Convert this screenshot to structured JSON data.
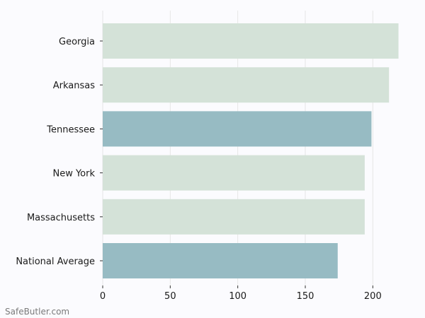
{
  "watermark": "SafeButler.com",
  "colors": {
    "background": "#fbfbfe",
    "bar_default": "#d4e2d8",
    "bar_highlight": "#97bbc3",
    "grid": "#e6e6e6",
    "axis_text": "#1a1a1a",
    "watermark": "#7a7a7a"
  },
  "chart_data": {
    "type": "bar",
    "orientation": "horizontal",
    "categories": [
      "Georgia",
      "Arkansas",
      "Tennessee",
      "New York",
      "Massachusetts",
      "National Average"
    ],
    "values": [
      219,
      212,
      199,
      194,
      194,
      174
    ],
    "highlighted": [
      false,
      false,
      true,
      false,
      false,
      true
    ],
    "xlim": [
      0,
      225
    ],
    "xticks": [
      0,
      50,
      100,
      150,
      200
    ],
    "title": "",
    "xlabel": "",
    "ylabel": "",
    "grid": "vertical",
    "legend": "none"
  }
}
